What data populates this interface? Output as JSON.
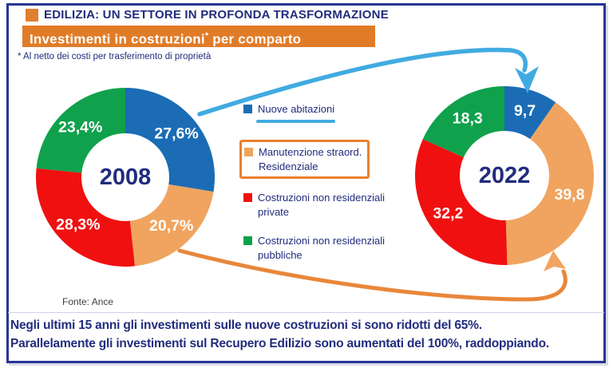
{
  "header": {
    "kicker": "EDILIZIA: UN SETTORE IN PROFONDA TRASFORMAZIONE",
    "banner": {
      "pre": "Investimenti in costruzioni",
      "sup": "*",
      "post": " per comparto"
    },
    "footnote": "* Al netto dei costi per trasferimento di proprietà"
  },
  "legend": {
    "items": [
      {
        "label": "Nuove abitazioni",
        "color": "#1b6cb5",
        "underlined": true
      },
      {
        "label": "Manutenzione straord.\nResidenziale",
        "color": "#f0a45f",
        "boxed": true
      },
      {
        "label": "Costruzioni non residenziali private",
        "color": "#f01010"
      },
      {
        "label": "Costruzioni non residenziali pubbliche",
        "color": "#10a14c"
      }
    ]
  },
  "chart_data": [
    {
      "type": "pie",
      "subtype": "donut",
      "center_label": "2008",
      "start_angle_deg": 0,
      "direction": "clockwise-from-top",
      "slices": [
        {
          "name": "Nuove abitazioni",
          "value": 27.6,
          "label": "27,6%",
          "color": "#1b6cb5"
        },
        {
          "name": "Manutenzione straord. Residenziale",
          "value": 20.7,
          "label": "20,7%",
          "color": "#f0a45f"
        },
        {
          "name": "Costruzioni non residenziali private",
          "value": 28.3,
          "label": "28,3%",
          "color": "#f01010"
        },
        {
          "name": "Costruzioni non residenziali pubbliche",
          "value": 23.4,
          "label": "23,4%",
          "color": "#10a14c"
        }
      ]
    },
    {
      "type": "pie",
      "subtype": "donut",
      "center_label": "2022",
      "start_angle_deg": 0,
      "direction": "clockwise-from-top",
      "slices": [
        {
          "name": "Nuove abitazioni",
          "value": 9.7,
          "label": "9,7",
          "color": "#1b6cb5"
        },
        {
          "name": "Manutenzione straord. Residenziale",
          "value": 39.8,
          "label": "39,8",
          "color": "#f0a45f"
        },
        {
          "name": "Costruzioni non residenziali private",
          "value": 32.2,
          "label": "32,2",
          "color": "#f01010"
        },
        {
          "name": "Costruzioni non residenziali pubbliche",
          "value": 18.3,
          "label": "18,3",
          "color": "#10a14c"
        }
      ]
    }
  ],
  "source": "Fonte: Ance",
  "commentary": {
    "line1": "Negli ultimi 15 anni gli investimenti sulle nuove costruzioni si sono ridotti del 65%.",
    "line2": "Parallelamente gli investimenti sul Recupero Edilizio sono aumentati del 100%, raddoppiando."
  },
  "colors": {
    "navy_text": "#212c7d",
    "frame_border": "#283593",
    "banner_orange": "#e07c28",
    "legend_box_orange": "#e8802f",
    "arrow_blue": "#41abe1",
    "arrow_orange": "#e8873b",
    "arrow_orange_head": "#f2a45f",
    "value_label_white": "#ffffff"
  }
}
